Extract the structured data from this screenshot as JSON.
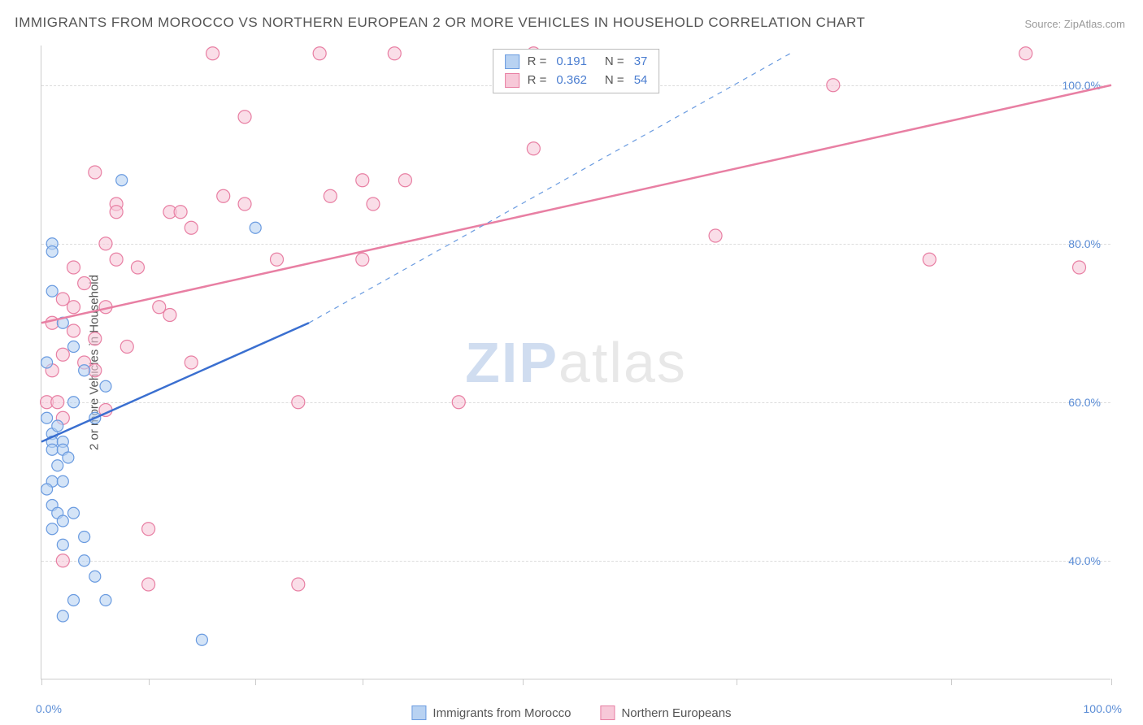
{
  "title": "IMMIGRANTS FROM MOROCCO VS NORTHERN EUROPEAN 2 OR MORE VEHICLES IN HOUSEHOLD CORRELATION CHART",
  "source": "Source: ZipAtlas.com",
  "watermark_a": "ZIP",
  "watermark_b": "atlas",
  "y_axis_title": "2 or more Vehicles in Household",
  "chart": {
    "type": "scatter",
    "xlim": [
      0,
      100
    ],
    "ylim": [
      25,
      105
    ],
    "y_ticks": [
      40,
      60,
      80,
      100
    ],
    "y_tick_labels": [
      "40.0%",
      "60.0%",
      "80.0%",
      "100.0%"
    ],
    "x_ticks": [
      0,
      10,
      20,
      30,
      45,
      65,
      85,
      100
    ],
    "x_start_label": "0.0%",
    "x_end_label": "100.0%",
    "background_color": "#ffffff",
    "grid_color": "#dddddd",
    "series": [
      {
        "key": "morocco",
        "label": "Immigrants from Morocco",
        "color_stroke": "#6a9be0",
        "color_fill": "#b8d2f2",
        "marker_radius": 7,
        "R": "0.191",
        "N": "37",
        "points": [
          [
            1,
            80
          ],
          [
            1,
            79
          ],
          [
            0.5,
            65
          ],
          [
            0.5,
            58
          ],
          [
            1,
            56
          ],
          [
            1.5,
            57
          ],
          [
            1,
            55
          ],
          [
            2,
            55
          ],
          [
            1,
            54
          ],
          [
            2,
            54
          ],
          [
            1.5,
            52
          ],
          [
            2.5,
            53
          ],
          [
            1,
            50
          ],
          [
            0.5,
            49
          ],
          [
            2,
            50
          ],
          [
            1,
            47
          ],
          [
            1.5,
            46
          ],
          [
            2,
            45
          ],
          [
            3,
            46
          ],
          [
            1,
            44
          ],
          [
            2,
            42
          ],
          [
            4,
            43
          ],
          [
            4,
            40
          ],
          [
            6,
            35
          ],
          [
            3,
            35
          ],
          [
            2,
            33
          ],
          [
            15,
            30
          ],
          [
            3,
            60
          ],
          [
            4,
            64
          ],
          [
            5,
            58
          ],
          [
            6,
            62
          ],
          [
            20,
            82
          ],
          [
            7.5,
            88
          ],
          [
            1,
            74
          ],
          [
            2,
            70
          ],
          [
            3,
            67
          ],
          [
            5,
            38
          ]
        ],
        "trend": {
          "x1": 0,
          "y1": 55,
          "x2": 25,
          "y2": 70,
          "dash_to_x": 70,
          "dash_to_y": 104,
          "width": 2.5
        }
      },
      {
        "key": "northern",
        "label": "Northern Europeans",
        "color_stroke": "#e87fa3",
        "color_fill": "#f7c8d8",
        "marker_radius": 8,
        "R": "0.362",
        "N": "54",
        "points": [
          [
            16,
            104
          ],
          [
            26,
            104
          ],
          [
            33,
            104
          ],
          [
            46,
            104
          ],
          [
            92,
            104
          ],
          [
            19,
            96
          ],
          [
            7,
            85
          ],
          [
            12,
            84
          ],
          [
            14,
            82
          ],
          [
            17,
            86
          ],
          [
            27,
            86
          ],
          [
            31,
            85
          ],
          [
            5,
            89
          ],
          [
            3,
            77
          ],
          [
            7,
            78
          ],
          [
            9,
            77
          ],
          [
            4,
            75
          ],
          [
            2,
            73
          ],
          [
            6,
            72
          ],
          [
            11,
            72
          ],
          [
            1,
            70
          ],
          [
            3,
            69
          ],
          [
            5,
            68
          ],
          [
            8,
            67
          ],
          [
            4,
            65
          ],
          [
            1,
            64
          ],
          [
            2,
            66
          ],
          [
            0.5,
            60
          ],
          [
            14,
            65
          ],
          [
            6,
            59
          ],
          [
            30,
            78
          ],
          [
            46,
            92
          ],
          [
            63,
            81
          ],
          [
            83,
            78
          ],
          [
            74,
            100
          ],
          [
            97,
            77
          ],
          [
            24,
            60
          ],
          [
            39,
            60
          ],
          [
            10,
            44
          ],
          [
            24,
            37
          ],
          [
            10,
            37
          ],
          [
            2,
            40
          ],
          [
            30,
            88
          ],
          [
            34,
            88
          ],
          [
            19,
            85
          ],
          [
            13,
            84
          ],
          [
            22,
            78
          ],
          [
            7,
            84
          ],
          [
            6,
            80
          ],
          [
            1.5,
            60
          ],
          [
            2,
            58
          ],
          [
            5,
            64
          ],
          [
            3,
            72
          ],
          [
            12,
            71
          ]
        ],
        "trend": {
          "x1": 0,
          "y1": 70,
          "x2": 100,
          "y2": 100,
          "width": 2.5
        }
      }
    ]
  },
  "legend": {
    "r_label": "R =",
    "n_label": "N ="
  },
  "colors": {
    "title": "#555555",
    "source": "#999999",
    "tick_label": "#5b8dd6"
  }
}
